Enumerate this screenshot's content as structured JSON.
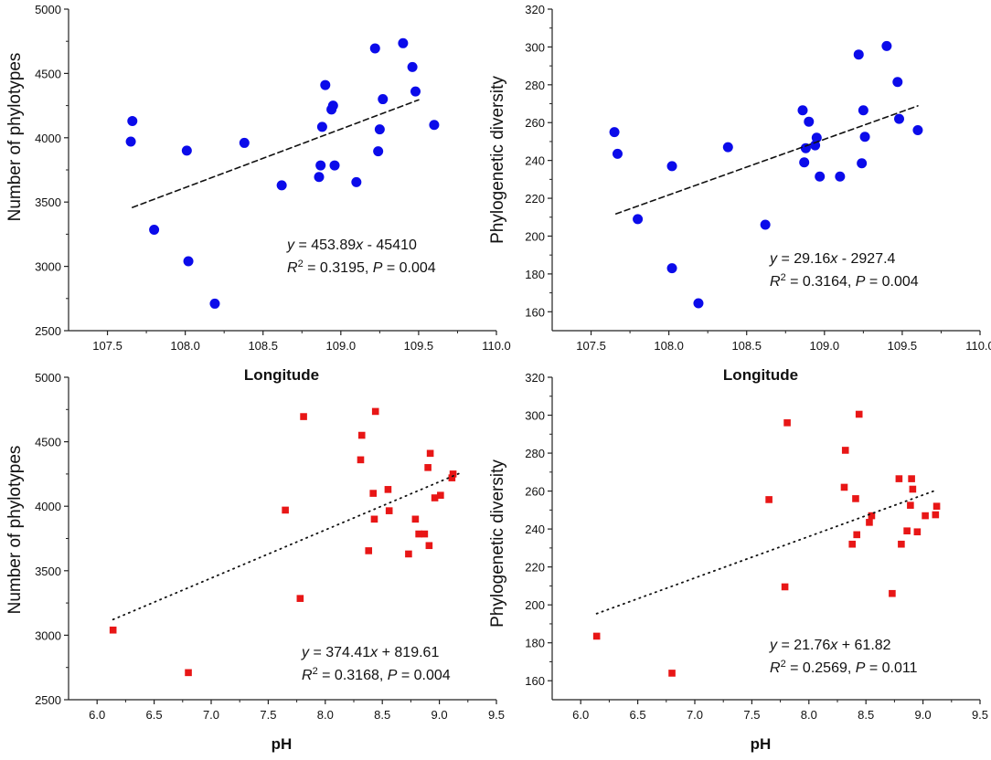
{
  "chart_data": [
    {
      "id": "p1",
      "type": "scatter",
      "xlabel": "Longitude",
      "ylabel": "Number of phylotypes",
      "xlim": [
        107.25,
        110.0
      ],
      "ylim": [
        2500,
        5000
      ],
      "xticks": [
        107.5,
        108.0,
        108.5,
        109.0,
        109.5,
        110.0
      ],
      "xtick_labels": [
        "107.5",
        "108.0",
        "108.5",
        "109.0",
        "109.5",
        "110.0"
      ],
      "yticks": [
        2500,
        3000,
        3500,
        4000,
        4500,
        5000
      ],
      "ytick_labels": [
        "2500",
        "3000",
        "3500",
        "4000",
        "4500",
        "5000"
      ],
      "marker": "circle",
      "color": "#0b0bea",
      "points": [
        [
          107.65,
          3970
        ],
        [
          107.66,
          4130
        ],
        [
          107.8,
          3285
        ],
        [
          108.01,
          3900
        ],
        [
          108.02,
          3040
        ],
        [
          108.19,
          2710
        ],
        [
          108.38,
          3960
        ],
        [
          108.62,
          3630
        ],
        [
          108.86,
          3695
        ],
        [
          108.87,
          3785
        ],
        [
          108.88,
          4085
        ],
        [
          108.9,
          4410
        ],
        [
          108.94,
          4220
        ],
        [
          108.95,
          4250
        ],
        [
          108.96,
          3785
        ],
        [
          109.1,
          3655
        ],
        [
          109.22,
          4695
        ],
        [
          109.24,
          3895
        ],
        [
          109.25,
          4065
        ],
        [
          109.27,
          4300
        ],
        [
          109.4,
          4735
        ],
        [
          109.46,
          4550
        ],
        [
          109.48,
          4360
        ],
        [
          109.6,
          4100
        ]
      ],
      "fit": {
        "style": "dashed",
        "x": [
          107.66,
          109.5
        ]
      },
      "equation": {
        "y": "y",
        "eq": " = 453.89",
        "x": "x",
        "rest": " - 45410"
      },
      "stats": {
        "r": "R",
        "sup": "2",
        "eq1": " = 0.3195, ",
        "p": "P",
        "eq2": " = 0.004"
      }
    },
    {
      "id": "p2",
      "type": "scatter",
      "xlabel": "Longitude",
      "ylabel": "Phylogenetic diversity",
      "xlim": [
        107.25,
        110.0
      ],
      "ylim": [
        150,
        320
      ],
      "xticks": [
        107.5,
        108.0,
        108.5,
        109.0,
        109.5,
        110.0
      ],
      "xtick_labels": [
        "107.5",
        "108.0",
        "108.5",
        "109.0",
        "109.5",
        "110.0"
      ],
      "yticks": [
        160,
        180,
        200,
        220,
        240,
        260,
        280,
        300,
        320
      ],
      "ytick_labels": [
        "160",
        "180",
        "200",
        "220",
        "240",
        "260",
        "280",
        "300",
        "320"
      ],
      "marker": "circle",
      "color": "#0b0bea",
      "points": [
        [
          107.65,
          255
        ],
        [
          107.67,
          243.5
        ],
        [
          107.8,
          209
        ],
        [
          108.02,
          237
        ],
        [
          108.02,
          183
        ],
        [
          108.19,
          164.5
        ],
        [
          108.38,
          247
        ],
        [
          108.62,
          206
        ],
        [
          108.86,
          266.5
        ],
        [
          108.87,
          239
        ],
        [
          108.88,
          246.5
        ],
        [
          108.9,
          260.5
        ],
        [
          108.94,
          248
        ],
        [
          108.95,
          252
        ],
        [
          108.97,
          231.5
        ],
        [
          109.1,
          231.5
        ],
        [
          109.22,
          296
        ],
        [
          109.24,
          238.5
        ],
        [
          109.25,
          266.5
        ],
        [
          109.26,
          252.5
        ],
        [
          109.4,
          300.5
        ],
        [
          109.47,
          281.5
        ],
        [
          109.48,
          262
        ],
        [
          109.6,
          256
        ]
      ],
      "fit": {
        "style": "dashed",
        "x": [
          107.66,
          109.6
        ]
      },
      "equation": {
        "y": "y",
        "eq": " = 29.16",
        "x": "x",
        "rest": " - 2927.4"
      },
      "stats": {
        "r": "R",
        "sup": "2",
        "eq1": " = 0.3164, ",
        "p": "P",
        "eq2": " = 0.004"
      }
    },
    {
      "id": "p3",
      "type": "scatter",
      "xlabel": "pH",
      "ylabel": "Number of phylotypes",
      "xlim": [
        5.75,
        9.5
      ],
      "ylim": [
        2500,
        5000
      ],
      "xticks": [
        6.0,
        6.5,
        7.0,
        7.5,
        8.0,
        8.5,
        9.0,
        9.5
      ],
      "xtick_labels": [
        "6.0",
        "6.5",
        "7.0",
        "7.5",
        "8.0",
        "8.5",
        "9.0",
        "9.5"
      ],
      "yticks": [
        2500,
        3000,
        3500,
        4000,
        4500,
        5000
      ],
      "ytick_labels": [
        "2500",
        "3000",
        "3500",
        "4000",
        "4500",
        "5000"
      ],
      "marker": "square",
      "color": "#e81616",
      "points": [
        [
          6.14,
          3040
        ],
        [
          6.8,
          2710
        ],
        [
          7.65,
          3970
        ],
        [
          7.78,
          3285
        ],
        [
          7.81,
          4695
        ],
        [
          8.31,
          4360
        ],
        [
          8.32,
          4550
        ],
        [
          8.38,
          3655
        ],
        [
          8.42,
          4100
        ],
        [
          8.43,
          3900
        ],
        [
          8.44,
          4735
        ],
        [
          8.55,
          4130
        ],
        [
          8.56,
          3965
        ],
        [
          8.73,
          3630
        ],
        [
          8.79,
          3900
        ],
        [
          8.82,
          3785
        ],
        [
          8.87,
          3785
        ],
        [
          8.9,
          4300
        ],
        [
          8.91,
          3695
        ],
        [
          8.92,
          4410
        ],
        [
          8.96,
          4065
        ],
        [
          9.01,
          4085
        ],
        [
          9.11,
          4220
        ],
        [
          9.12,
          4250
        ]
      ],
      "fit": {
        "style": "dotted",
        "x": [
          6.14,
          9.2
        ]
      },
      "equation": {
        "y": "y",
        "eq": " = 374.41",
        "x": "x",
        "rest": " + 819.61"
      },
      "stats": {
        "r": "R",
        "sup": "2",
        "eq1": " = 0.3168, ",
        "p": "P",
        "eq2": " = 0.004"
      }
    },
    {
      "id": "p4",
      "type": "scatter",
      "xlabel": "pH",
      "ylabel": "Phylogenetic diversity",
      "xlim": [
        5.75,
        9.5
      ],
      "ylim": [
        150,
        320
      ],
      "xticks": [
        6.0,
        6.5,
        7.0,
        7.5,
        8.0,
        8.5,
        9.0,
        9.5
      ],
      "xtick_labels": [
        "6.0",
        "6.5",
        "7.0",
        "7.5",
        "8.0",
        "8.5",
        "9.0",
        "9.5"
      ],
      "yticks": [
        160,
        180,
        200,
        220,
        240,
        260,
        280,
        300,
        320
      ],
      "ytick_labels": [
        "160",
        "180",
        "200",
        "220",
        "240",
        "260",
        "280",
        "300",
        "320"
      ],
      "marker": "square",
      "color": "#e81616",
      "points": [
        [
          6.14,
          183.5
        ],
        [
          6.8,
          164
        ],
        [
          7.65,
          255.5
        ],
        [
          7.79,
          209.5
        ],
        [
          7.81,
          296
        ],
        [
          8.31,
          262
        ],
        [
          8.32,
          281.5
        ],
        [
          8.38,
          232
        ],
        [
          8.41,
          256
        ],
        [
          8.42,
          237
        ],
        [
          8.44,
          300.5
        ],
        [
          8.53,
          243.5
        ],
        [
          8.55,
          247
        ],
        [
          8.73,
          206
        ],
        [
          8.79,
          266.5
        ],
        [
          8.81,
          232
        ],
        [
          8.86,
          239
        ],
        [
          8.89,
          252.5
        ],
        [
          8.9,
          266.5
        ],
        [
          8.91,
          261
        ],
        [
          8.95,
          238.5
        ],
        [
          9.02,
          247
        ],
        [
          9.11,
          247.5
        ],
        [
          9.12,
          252
        ]
      ],
      "fit": {
        "style": "dotted",
        "x": [
          6.14,
          9.1
        ]
      },
      "equation": {
        "y": "y",
        "eq": " = 21.76",
        "x": "x",
        "rest": " + 61.82"
      },
      "stats": {
        "r": "R",
        "sup": "2",
        "eq1": " = 0.2569, ",
        "p": "P",
        "eq2": " = 0.011"
      }
    }
  ]
}
